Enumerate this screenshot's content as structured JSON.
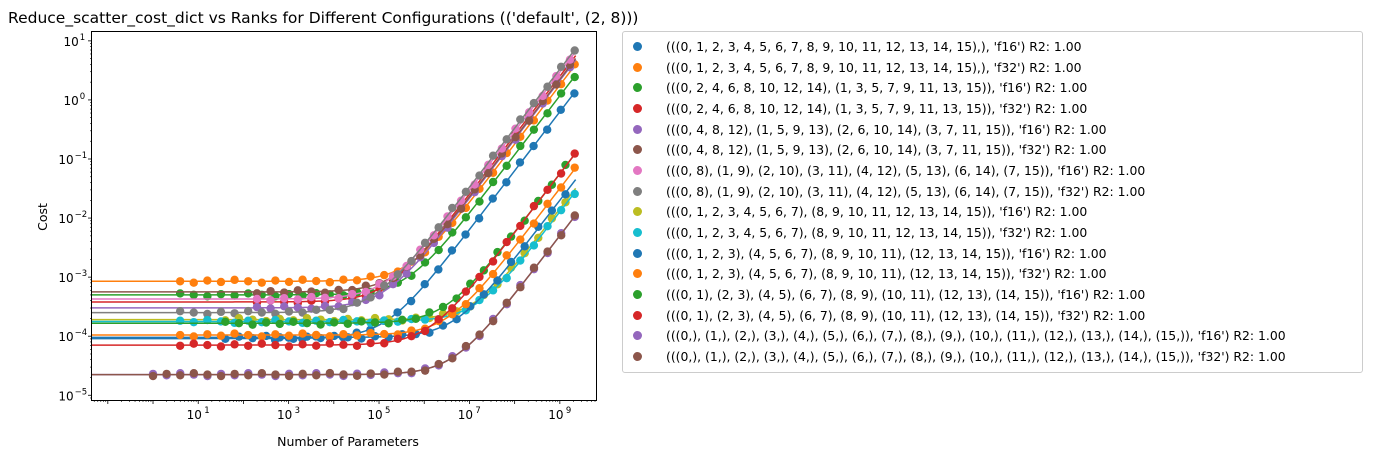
{
  "chart_data": {
    "type": "scatter",
    "title": "Reduce_scatter_cost_dict vs Ranks for Different Configurations (('default', (2, 8)))",
    "xlabel": "Number of Parameters",
    "ylabel": "Cost",
    "xscale": "log",
    "yscale": "log",
    "xlim_log10": [
      -1.35,
      9.8
    ],
    "ylim_log10": [
      -5.08,
      1.15
    ],
    "xticks": [
      {
        "value": 1,
        "label_base": "10",
        "label_exp": "1"
      },
      {
        "value": 3,
        "label_base": "10",
        "label_exp": "3"
      },
      {
        "value": 5,
        "label_base": "10",
        "label_exp": "5"
      },
      {
        "value": 7,
        "label_base": "10",
        "label_exp": "7"
      },
      {
        "value": 9,
        "label_base": "10",
        "label_exp": "9"
      }
    ],
    "yticks": [
      {
        "value": -5,
        "label_base": "10",
        "label_exp": "−5"
      },
      {
        "value": -4,
        "label_base": "10",
        "label_exp": "−4"
      },
      {
        "value": -3,
        "label_base": "10",
        "label_exp": "−3"
      },
      {
        "value": -2,
        "label_base": "10",
        "label_exp": "−2"
      },
      {
        "value": -1,
        "label_base": "10",
        "label_exp": "−1"
      },
      {
        "value": 0,
        "label_base": "10",
        "label_exp": "0"
      },
      {
        "value": 1,
        "label_base": "10",
        "label_exp": "1"
      }
    ],
    "grid": false,
    "legend_position": "outside right",
    "series": [
      {
        "name": "(((0, 1, 2, 3, 4, 5, 6, 7, 8, 9, 10, 11, 12, 13, 14, 15),), 'f16') R2: 1.00",
        "color": "#1f77b4",
        "base_log10": -4.04,
        "x_min_log10": 5.86,
        "end_log10": 0.15,
        "x_start_log10": 2.7
      },
      {
        "name": "(((0, 1, 2, 3, 4, 5, 6, 7, 8, 9, 10, 11, 12, 13, 14, 15),), 'f32') R2: 1.00",
        "color": "#ff7f0e",
        "base_log10": -3.07,
        "x_min_log10": 0.6,
        "end_log10": 0.6,
        "x_start_log10": 0.6
      },
      {
        "name": "(((0, 2, 4, 6, 8, 10, 12, 14), (1, 3, 5, 7, 9, 11, 13, 15)), 'f16') R2: 1.00",
        "color": "#2ca02c",
        "base_log10": -3.3,
        "x_min_log10": 0.6,
        "end_log10": 0.42,
        "x_start_log10": 0.6
      },
      {
        "name": "(((0, 2, 4, 6, 8, 10, 12, 14), (1, 3, 5, 7, 9, 11, 13, 15)), 'f32') R2: 1.00",
        "color": "#d62728",
        "base_log10": -3.42,
        "x_min_log10": 1.0,
        "end_log10": 0.75,
        "x_start_log10": 2.3
      },
      {
        "name": "(((0, 4, 8, 12), (1, 5, 9, 13), (2, 6, 10, 14), (3, 7, 11, 15)), 'f16') R2: 1.00",
        "color": "#9467bd",
        "base_log10": -3.52,
        "x_min_log10": 1.0,
        "end_log10": 0.68,
        "x_start_log10": 2.3
      },
      {
        "name": "(((0, 4, 8, 12), (1, 5, 9, 13), (2, 6, 10, 14), (3, 7, 11, 15)), 'f32') R2: 1.00",
        "color": "#8c564b",
        "base_log10": -3.25,
        "x_min_log10": 1.0,
        "end_log10": 0.7,
        "x_start_log10": 2.3
      },
      {
        "name": "(((0, 8), (1, 9), (2, 10), (3, 11), (4, 12), (5, 13), (6, 14), (7, 15)), 'f16') R2: 1.00",
        "color": "#e377c2",
        "base_log10": -3.37,
        "x_min_log10": 1.0,
        "end_log10": 0.82,
        "x_start_log10": 2.3
      },
      {
        "name": "(((0, 8), (1, 9), (2, 10), (3, 11), (4, 12), (5, 13), (6, 14), (7, 15)), 'f32') R2: 1.00",
        "color": "#7f7f7f",
        "base_log10": -3.6,
        "x_min_log10": 0.6,
        "end_log10": 0.87,
        "x_start_log10": 0.6
      },
      {
        "name": "(((0, 1, 2, 3, 4, 5, 6, 7), (8, 9, 10, 11, 12, 13, 14, 15)), 'f16') R2: 1.00",
        "color": "#bcbd22",
        "base_log10": -3.72,
        "x_min_log10": 1.0,
        "end_log10": -1.5,
        "x_start_log10": 1.6
      },
      {
        "name": "(((0, 1, 2, 3, 4, 5, 6, 7), (8, 9, 10, 11, 12, 13, 14, 15)), 'f32') R2: 1.00",
        "color": "#17becf",
        "base_log10": -3.75,
        "x_min_log10": 0.6,
        "end_log10": -1.55,
        "x_start_log10": 0.6
      },
      {
        "name": "(((0, 1, 2, 3), (4, 5, 6, 7), (8, 9, 10, 11), (12, 13, 14, 15)), 'f16') R2: 1.00",
        "color": "#1f77b4",
        "base_log10": -4.02,
        "x_min_log10": 1.0,
        "end_log10": -1.35,
        "x_start_log10": 1.6
      },
      {
        "name": "(((0, 1, 2, 3), (4, 5, 6, 7), (8, 9, 10, 11), (12, 13, 14, 15)), 'f32') R2: 1.00",
        "color": "#ff7f0e",
        "base_log10": -3.98,
        "x_min_log10": 0.6,
        "end_log10": -1.15,
        "x_start_log10": 0.6
      },
      {
        "name": "(((0, 1), (2, 3), (4, 5), (6, 7), (8, 9), (10, 11), (12, 13), (14, 15)), 'f16') R2: 1.00",
        "color": "#2ca02c",
        "base_log10": -3.78,
        "x_min_log10": 1.0,
        "end_log10": -0.9,
        "x_start_log10": 1.6
      },
      {
        "name": "(((0, 1), (2, 3), (4, 5), (6, 7), (8, 9), (10, 11), (12, 13), (14, 15)), 'f32') R2: 1.00",
        "color": "#d62728",
        "base_log10": -4.15,
        "x_min_log10": 1.0,
        "end_log10": -0.9,
        "x_start_log10": 0.6
      },
      {
        "name": "(((0,), (1,), (2,), (3,), (4,), (5,), (6,), (7,), (8,), (9,), (10,), (11,), (12,), (13,), (14,), (15,)), 'f16') R2: 1.00",
        "color": "#9467bd",
        "base_log10": -4.65,
        "x_min_log10": 0.0,
        "end_log10": -1.95,
        "x_start_log10": 0.0
      },
      {
        "name": "(((0,), (1,), (2,), (3,), (4,), (5,), (6,), (7,), (8,), (9,), (10,), (11,), (12,), (13,), (14,), (15,)), 'f32') R2: 1.00",
        "color": "#8c564b",
        "base_log10": -4.65,
        "x_min_log10": 0.0,
        "end_log10": -1.95,
        "x_start_log10": 0.0
      }
    ]
  }
}
